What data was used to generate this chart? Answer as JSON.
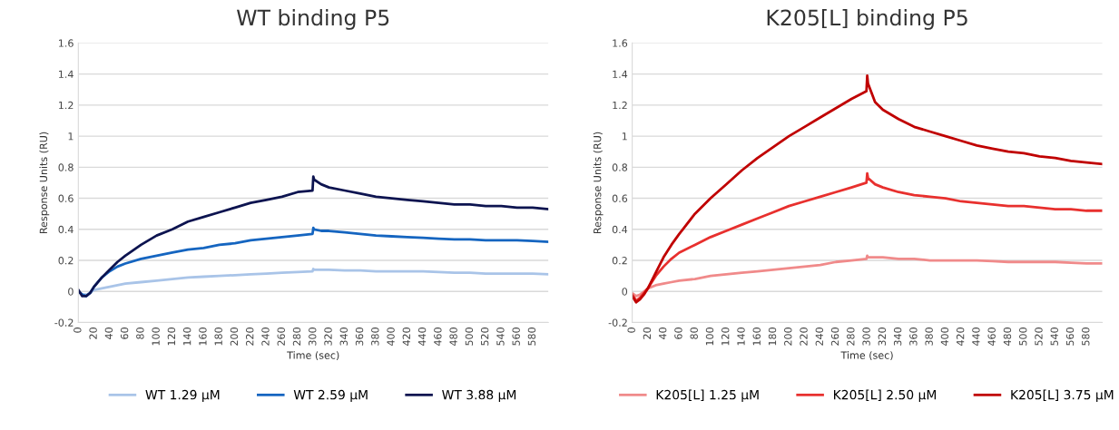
{
  "chart_data": [
    {
      "type": "line",
      "title": "WT binding P5",
      "xlabel": "Time (sec)",
      "ylabel": "Response Units (RU)",
      "x": [
        0,
        5,
        10,
        15,
        20,
        30,
        40,
        50,
        60,
        80,
        100,
        120,
        140,
        160,
        180,
        200,
        220,
        240,
        260,
        280,
        299,
        300,
        301,
        310,
        320,
        340,
        360,
        380,
        400,
        420,
        440,
        460,
        480,
        500,
        520,
        540,
        560,
        580,
        600
      ],
      "xlim": [
        0,
        600
      ],
      "xticks": [
        0,
        20,
        40,
        60,
        80,
        100,
        120,
        140,
        160,
        180,
        200,
        220,
        240,
        260,
        280,
        300,
        320,
        340,
        360,
        380,
        400,
        420,
        440,
        460,
        480,
        500,
        520,
        540,
        560,
        580
      ],
      "ylim": [
        -0.2,
        1.6
      ],
      "yticks": [
        -0.2,
        0,
        0.2,
        0.4,
        0.6,
        0.8,
        1,
        1.2,
        1.4,
        1.6
      ],
      "grid": "y",
      "legend": "bottom",
      "series": [
        {
          "name": "WT 1.29 µM",
          "color": "#a9c4e8",
          "values": [
            0,
            -0.02,
            -0.02,
            -0.01,
            0.01,
            0.02,
            0.03,
            0.04,
            0.05,
            0.06,
            0.07,
            0.08,
            0.09,
            0.095,
            0.1,
            0.105,
            0.11,
            0.115,
            0.12,
            0.125,
            0.13,
            0.145,
            0.14,
            0.14,
            0.14,
            0.135,
            0.135,
            0.13,
            0.13,
            0.13,
            0.13,
            0.125,
            0.12,
            0.12,
            0.115,
            0.115,
            0.115,
            0.115,
            0.11
          ]
        },
        {
          "name": "WT 2.59 µM",
          "color": "#1565c0",
          "values": [
            0,
            -0.02,
            -0.03,
            -0.01,
            0.03,
            0.09,
            0.13,
            0.16,
            0.18,
            0.21,
            0.23,
            0.25,
            0.27,
            0.28,
            0.3,
            0.31,
            0.33,
            0.34,
            0.35,
            0.36,
            0.37,
            0.41,
            0.4,
            0.39,
            0.39,
            0.38,
            0.37,
            0.36,
            0.355,
            0.35,
            0.345,
            0.34,
            0.335,
            0.335,
            0.33,
            0.33,
            0.33,
            0.325,
            0.32
          ]
        },
        {
          "name": "WT 3.88 µM",
          "color": "#0d1450",
          "values": [
            0.01,
            -0.03,
            -0.03,
            -0.01,
            0.03,
            0.09,
            0.14,
            0.19,
            0.23,
            0.3,
            0.36,
            0.4,
            0.45,
            0.48,
            0.51,
            0.54,
            0.57,
            0.59,
            0.61,
            0.64,
            0.65,
            0.74,
            0.72,
            0.69,
            0.67,
            0.65,
            0.63,
            0.61,
            0.6,
            0.59,
            0.58,
            0.57,
            0.56,
            0.56,
            0.55,
            0.55,
            0.54,
            0.54,
            0.53
          ]
        }
      ]
    },
    {
      "type": "line",
      "title": "K205[L] binding P5",
      "xlabel": "Time (sec)",
      "ylabel": "Response Units (RU)",
      "x": [
        0,
        5,
        10,
        15,
        20,
        30,
        40,
        50,
        60,
        80,
        100,
        120,
        140,
        160,
        180,
        200,
        220,
        240,
        260,
        280,
        299,
        300,
        301,
        310,
        320,
        340,
        360,
        380,
        400,
        420,
        440,
        460,
        480,
        500,
        520,
        540,
        560,
        580,
        600
      ],
      "xlim": [
        0,
        600
      ],
      "xticks": [
        0,
        20,
        40,
        60,
        80,
        100,
        120,
        140,
        160,
        180,
        200,
        220,
        240,
        260,
        280,
        300,
        320,
        340,
        360,
        380,
        400,
        420,
        440,
        460,
        480,
        500,
        520,
        540,
        560,
        580
      ],
      "ylim": [
        -0.2,
        1.6
      ],
      "yticks": [
        -0.2,
        0,
        0.2,
        0.4,
        0.6,
        0.8,
        1,
        1.2,
        1.4,
        1.6
      ],
      "grid": "y",
      "legend": "bottom",
      "series": [
        {
          "name": "K205[L] 1.25 µM",
          "color": "#f08a8a",
          "values": [
            -0.01,
            -0.03,
            -0.02,
            0,
            0.02,
            0.04,
            0.05,
            0.06,
            0.07,
            0.08,
            0.1,
            0.11,
            0.12,
            0.13,
            0.14,
            0.15,
            0.16,
            0.17,
            0.19,
            0.2,
            0.21,
            0.23,
            0.22,
            0.22,
            0.22,
            0.21,
            0.21,
            0.2,
            0.2,
            0.2,
            0.2,
            0.195,
            0.19,
            0.19,
            0.19,
            0.19,
            0.185,
            0.18,
            0.18
          ]
        },
        {
          "name": "K205[L] 2.50 µM",
          "color": "#e8302e",
          "values": [
            -0.02,
            -0.06,
            -0.04,
            -0.01,
            0.02,
            0.1,
            0.16,
            0.21,
            0.25,
            0.3,
            0.35,
            0.39,
            0.43,
            0.47,
            0.51,
            0.55,
            0.58,
            0.61,
            0.64,
            0.67,
            0.7,
            0.76,
            0.73,
            0.69,
            0.67,
            0.64,
            0.62,
            0.61,
            0.6,
            0.58,
            0.57,
            0.56,
            0.55,
            0.55,
            0.54,
            0.53,
            0.53,
            0.52,
            0.52
          ]
        },
        {
          "name": "K205[L] 3.75 µM",
          "color": "#c00000",
          "values": [
            -0.03,
            -0.07,
            -0.05,
            -0.02,
            0.02,
            0.12,
            0.22,
            0.3,
            0.37,
            0.5,
            0.6,
            0.69,
            0.78,
            0.86,
            0.93,
            1.0,
            1.06,
            1.12,
            1.18,
            1.24,
            1.29,
            1.39,
            1.34,
            1.22,
            1.17,
            1.11,
            1.06,
            1.03,
            1.0,
            0.97,
            0.94,
            0.92,
            0.9,
            0.89,
            0.87,
            0.86,
            0.84,
            0.83,
            0.82
          ]
        }
      ]
    }
  ]
}
